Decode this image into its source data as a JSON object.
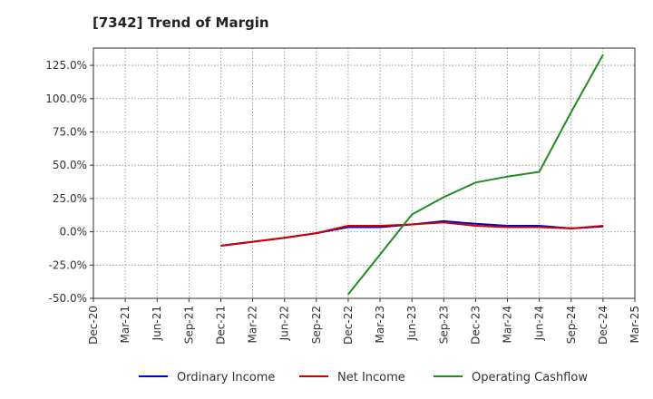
{
  "chart_data": {
    "type": "line",
    "title": "[7342]  Trend of Margin",
    "xlabel": "",
    "ylabel": "",
    "x": [
      "Dec-20",
      "Mar-21",
      "Jun-21",
      "Sep-21",
      "Dec-21",
      "Mar-22",
      "Jun-22",
      "Sep-22",
      "Dec-22",
      "Mar-23",
      "Jun-23",
      "Sep-23",
      "Dec-23",
      "Mar-24",
      "Jun-24",
      "Sep-24",
      "Dec-24",
      "Mar-25"
    ],
    "yticks": [
      "125.0%",
      "100.0%",
      "75.0%",
      "50.0%",
      "25.0%",
      "0.0%",
      "-25.0%",
      "-50.0%"
    ],
    "ytick_values": [
      125,
      100,
      75,
      50,
      25,
      0,
      -25,
      -50
    ],
    "ylim": [
      -50,
      138
    ],
    "grid": true,
    "legend_position": "bottom",
    "series": [
      {
        "name": "Ordinary Income",
        "color": "#0000cc",
        "values": [
          null,
          null,
          null,
          null,
          -10.5,
          -7.5,
          -4.5,
          -1.0,
          3.5,
          3.5,
          5.5,
          8.0,
          6.0,
          4.5,
          4.5,
          2.5,
          4.0,
          null
        ]
      },
      {
        "name": "Net Income",
        "color": "#cc0000",
        "values": [
          null,
          null,
          null,
          null,
          -10.5,
          -7.5,
          -4.5,
          -1.0,
          4.5,
          4.5,
          5.5,
          7.0,
          4.5,
          3.5,
          3.5,
          2.5,
          4.5,
          null
        ]
      },
      {
        "name": "Operating Cashflow",
        "color": "#228b22",
        "values": [
          null,
          null,
          null,
          null,
          null,
          null,
          null,
          null,
          -47.0,
          -17.0,
          13.0,
          26.0,
          37.0,
          41.5,
          45.0,
          90.0,
          133.0,
          null
        ]
      }
    ]
  }
}
